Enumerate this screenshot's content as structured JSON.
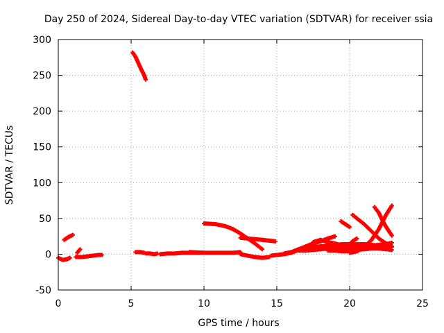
{
  "chart_data": {
    "type": "scatter",
    "title": "Day 250 of 2024, Sidereal Day-to-day VTEC variation (SDTVAR) for receiver ssia",
    "xlabel": "GPS time / hours",
    "ylabel": "SDTVAR / TECUs",
    "xlim": [
      0,
      25
    ],
    "ylim": [
      -50,
      300
    ],
    "xticks": [
      "0",
      "5",
      "10",
      "15",
      "20",
      "25"
    ],
    "yticks": [
      "-50",
      "0",
      "50",
      "100",
      "150",
      "200",
      "250",
      "300"
    ],
    "grid": true,
    "marker_color": "#ff0000",
    "series": [
      {
        "x": [
          0.0,
          0.3,
          0.6,
          0.8
        ],
        "y": [
          -5,
          -8,
          -7,
          -5
        ]
      },
      {
        "x": [
          0.4,
          0.7,
          1.0
        ],
        "y": [
          20,
          24,
          27
        ]
      },
      {
        "x": [
          1.3,
          1.5
        ],
        "y": [
          2,
          7
        ]
      },
      {
        "x": [
          1.2,
          1.6,
          2.0,
          2.4,
          2.8,
          3.0
        ],
        "y": [
          -4,
          -4,
          -3,
          -2,
          -1,
          -1
        ]
      },
      {
        "x": [
          5.1,
          5.3,
          5.5,
          5.7,
          5.9,
          6.0
        ],
        "y": [
          282,
          276,
          267,
          258,
          250,
          244
        ]
      },
      {
        "x": [
          5.3,
          5.6,
          5.9
        ],
        "y": [
          3,
          3,
          2
        ]
      },
      {
        "x": [
          6.0,
          6.3,
          6.6,
          6.8
        ],
        "y": [
          1,
          1,
          0,
          1
        ]
      },
      {
        "x": [
          7.0,
          7.5,
          8.0,
          8.5,
          9.0,
          9.5,
          10.0
        ],
        "y": [
          0,
          1,
          1,
          2,
          2,
          2,
          2
        ]
      },
      {
        "x": [
          9.0,
          10.0,
          11.0,
          12.0,
          12.5
        ],
        "y": [
          3,
          2,
          2,
          2,
          3
        ]
      },
      {
        "x": [
          10.0,
          10.8,
          11.5,
          12.0,
          12.5,
          13.0,
          13.5,
          14.0
        ],
        "y": [
          43,
          42,
          39,
          35,
          29,
          22,
          15,
          7
        ]
      },
      {
        "x": [
          12.5,
          13.0,
          13.5,
          14.0,
          14.5,
          14.9
        ],
        "y": [
          23,
          22,
          21,
          20,
          19,
          18
        ]
      },
      {
        "x": [
          12.5,
          13.0,
          13.5,
          14.0,
          14.5
        ],
        "y": [
          0,
          -2,
          -4,
          -5,
          -4
        ]
      },
      {
        "x": [
          14.6,
          15.0,
          15.5,
          16.0,
          16.5,
          17.0
        ],
        "y": [
          -2,
          -1,
          0,
          2,
          6,
          9
        ]
      },
      {
        "x": [
          15.5,
          16.0,
          16.5,
          17.0,
          17.5,
          18.0,
          18.5,
          19.0
        ],
        "y": [
          1,
          3,
          7,
          11,
          15,
          18,
          22,
          25
        ]
      },
      {
        "x": [
          16.5,
          17.0,
          17.5,
          18.0,
          18.5,
          19.0,
          19.5,
          20.0
        ],
        "y": [
          5,
          5,
          6,
          7,
          8,
          8,
          9,
          9
        ]
      },
      {
        "x": [
          17.0,
          17.5,
          18.0,
          18.5,
          19.0,
          19.5,
          20.0
        ],
        "y": [
          9,
          10,
          11,
          12,
          13,
          14,
          14
        ]
      },
      {
        "x": [
          17.5,
          18.0,
          18.5,
          19.0,
          19.5
        ],
        "y": [
          17,
          20,
          17,
          15,
          12
        ]
      },
      {
        "x": [
          18.5,
          19.0,
          19.5,
          20.0
        ],
        "y": [
          5,
          5,
          4,
          4
        ]
      },
      {
        "x": [
          19.4,
          19.7,
          20.0
        ],
        "y": [
          46,
          42,
          38
        ]
      },
      {
        "x": [
          19.8,
          20.2,
          20.5
        ],
        "y": [
          10,
          18,
          22
        ]
      },
      {
        "x": [
          20.2,
          20.5,
          21.0,
          21.5,
          22.0,
          22.5,
          22.9
        ],
        "y": [
          55,
          50,
          42,
          32,
          22,
          15,
          11
        ]
      },
      {
        "x": [
          20.0,
          20.5,
          21.0,
          21.5,
          22.0,
          22.5,
          22.9
        ],
        "y": [
          2,
          4,
          10,
          20,
          35,
          55,
          68
        ]
      },
      {
        "x": [
          21.7,
          22.0,
          22.3,
          22.6,
          22.9
        ],
        "y": [
          66,
          58,
          45,
          35,
          26
        ]
      },
      {
        "x": [
          20.0,
          20.5,
          21.0,
          21.5,
          22.0,
          22.5,
          22.9
        ],
        "y": [
          13,
          14,
          14,
          13,
          12,
          11,
          10
        ]
      },
      {
        "x": [
          20.0,
          20.5,
          21.0,
          21.5,
          22.0,
          22.5,
          22.9
        ],
        "y": [
          5,
          6,
          7,
          8,
          8,
          7,
          6
        ]
      },
      {
        "x": [
          20.0,
          20.5,
          21.0,
          21.5,
          22.0,
          22.5,
          22.9
        ],
        "y": [
          10,
          11,
          11,
          12,
          13,
          14,
          16
        ]
      }
    ]
  }
}
